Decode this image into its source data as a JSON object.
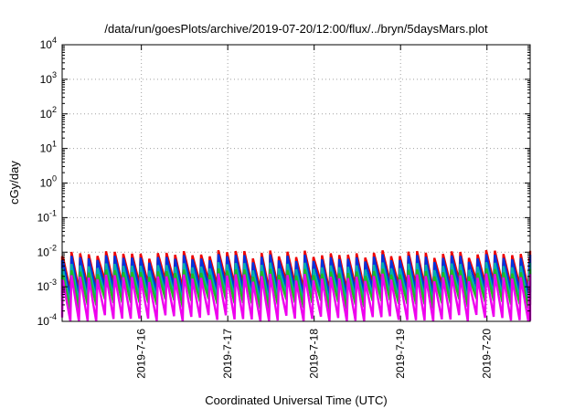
{
  "chart_data": {
    "type": "line",
    "title": "/data/run/goesPlots/archive/2019-07-20/12:00/flux/../bryn/5daysMars.plot",
    "xlabel": "Coordinated Universal Time (UTC)",
    "ylabel": "cGy/day",
    "yscale": "log",
    "ylim": [
      0.0001,
      10000
    ],
    "xlim": [
      "2019-07-15T02:00",
      "2019-07-20T12:00"
    ],
    "yticks": [
      {
        "base": "10",
        "exp": "-4",
        "value": 0.0001
      },
      {
        "base": "10",
        "exp": "-3",
        "value": 0.001
      },
      {
        "base": "10",
        "exp": "-2",
        "value": 0.01
      },
      {
        "base": "10",
        "exp": "-1",
        "value": 0.1
      },
      {
        "base": "10",
        "exp": "0",
        "value": 1
      },
      {
        "base": "10",
        "exp": "1",
        "value": 10
      },
      {
        "base": "10",
        "exp": "2",
        "value": 100
      },
      {
        "base": "10",
        "exp": "3",
        "value": 1000
      },
      {
        "base": "10",
        "exp": "4",
        "value": 10000
      }
    ],
    "xticks": [
      {
        "label": "2019-7-16",
        "value": "2019-07-16T00:00"
      },
      {
        "label": "2019-7-17",
        "value": "2019-07-17T00:00"
      },
      {
        "label": "2019-7-18",
        "value": "2019-07-18T00:00"
      },
      {
        "label": "2019-7-19",
        "value": "2019-07-19T00:00"
      },
      {
        "label": "2019-7-20",
        "value": "2019-07-20T00:00"
      }
    ],
    "grid": true,
    "legend": "none",
    "pattern": "sawtooth",
    "cycle_hours": 2.4,
    "series": [
      {
        "color": "#ee0000",
        "peak": 0.0085,
        "trough": 0.0012
      },
      {
        "color": "#0033dd",
        "peak": 0.0065,
        "trough": 0.0008
      },
      {
        "color": "#00b0b0",
        "peak": 0.0038,
        "trough": 0.0005
      },
      {
        "color": "#22bb22",
        "peak": 0.0025,
        "trough": 0.00035
      },
      {
        "color": "#ee00ee",
        "peak": 0.0018,
        "trough": 0.00012
      }
    ]
  }
}
